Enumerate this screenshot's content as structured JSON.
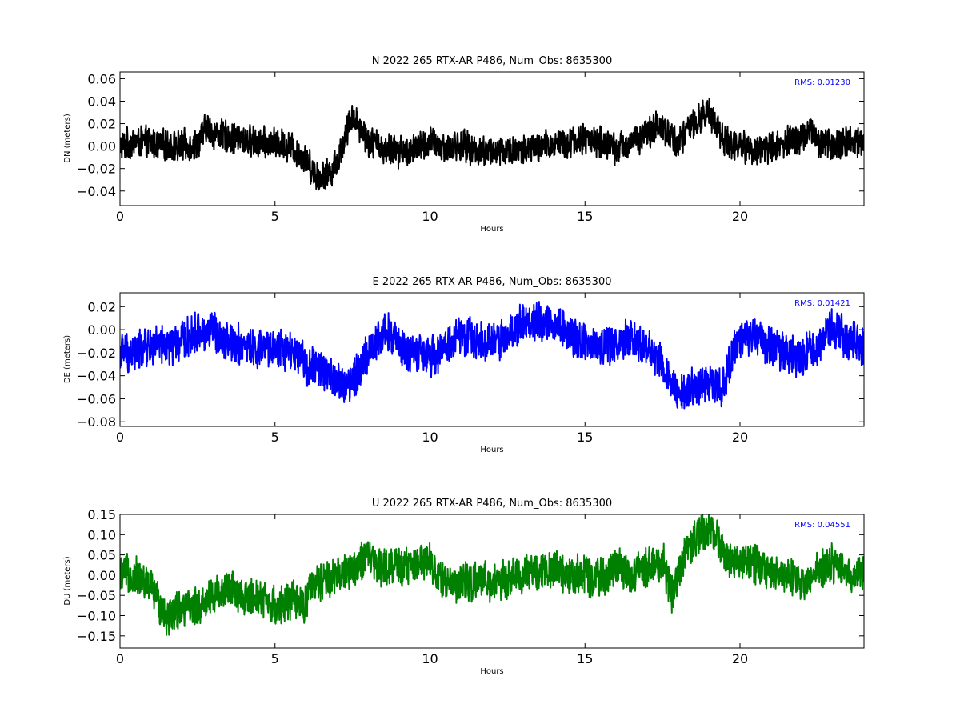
{
  "chart_data": [
    {
      "type": "line",
      "title": "N 2022 265 RTX-AR  P486, Num_Obs: 8635300",
      "xlabel": "Hours",
      "ylabel": "DN (meters)",
      "xlim": [
        0,
        24
      ],
      "ylim": [
        -0.053,
        0.066
      ],
      "xticks": [
        0,
        5,
        10,
        15,
        20
      ],
      "xtick_labels": [
        "0",
        "5",
        "10",
        "15",
        "20"
      ],
      "yticks": [
        -0.04,
        -0.02,
        0.0,
        0.02,
        0.04,
        0.06
      ],
      "ytick_labels": [
        "−0.04",
        "−0.02",
        "0.00",
        "0.02",
        "0.04",
        "0.06"
      ],
      "rms_label": "RMS:  0.01230",
      "color": "#000000",
      "rms_color": "#0000ff",
      "series": [
        {
          "x": [
            0,
            0.5,
            1,
            1.5,
            2,
            2.5,
            2.8,
            3,
            3.5,
            4,
            4.5,
            5,
            5.5,
            6,
            6.3,
            6.6,
            7,
            7.3,
            7.5,
            7.8,
            8,
            8.5,
            9,
            9.5,
            10,
            10.5,
            11,
            11.5,
            12,
            12.5,
            13,
            13.5,
            14,
            14.5,
            15,
            15.5,
            16,
            16.5,
            17,
            17.3,
            17.6,
            18,
            18.5,
            19,
            19.3,
            19.5,
            20,
            20.5,
            21,
            21.5,
            22,
            22.3,
            22.5,
            23,
            23.5,
            24
          ],
          "y": [
            0.0,
            0.004,
            0.003,
            0.0,
            0.0,
            0.002,
            0.017,
            0.012,
            0.008,
            0.005,
            0.003,
            0.002,
            0.0,
            -0.012,
            -0.025,
            -0.028,
            -0.015,
            0.012,
            0.028,
            0.015,
            0.005,
            -0.002,
            -0.005,
            -0.003,
            0.003,
            -0.002,
            0.001,
            -0.004,
            -0.005,
            -0.004,
            -0.004,
            -0.002,
            0.002,
            0.004,
            0.006,
            0.004,
            -0.003,
            0.004,
            0.01,
            0.02,
            0.012,
            0.004,
            0.02,
            0.03,
            0.018,
            0.005,
            0.0,
            -0.003,
            -0.002,
            0.003,
            0.008,
            0.015,
            0.004,
            0.0,
            0.005,
            0.005
          ],
          "noise": 0.016
        }
      ]
    },
    {
      "type": "line",
      "title": "E 2022 265 RTX-AR  P486, Num_Obs: 8635300",
      "xlabel": "Hours",
      "ylabel": "DE (meters)",
      "xlim": [
        0,
        24
      ],
      "ylim": [
        -0.084,
        0.032
      ],
      "xticks": [
        0,
        5,
        10,
        15,
        20
      ],
      "xtick_labels": [
        "0",
        "5",
        "10",
        "15",
        "20"
      ],
      "yticks": [
        -0.08,
        -0.06,
        -0.04,
        -0.02,
        0.0,
        0.02
      ],
      "ytick_labels": [
        "−0.08",
        "−0.06",
        "−0.04",
        "−0.02",
        "0.00",
        "0.02"
      ],
      "rms_label": "RMS:  0.01421",
      "color": "#0000ff",
      "rms_color": "#0000ff",
      "series": [
        {
          "x": [
            0,
            0.5,
            1,
            1.5,
            2,
            2.5,
            3,
            3.3,
            3.6,
            4,
            4.5,
            5,
            5.5,
            6,
            6.5,
            7,
            7.3,
            7.6,
            8,
            8.3,
            8.6,
            9,
            9.5,
            10,
            10.5,
            11,
            11.5,
            12,
            12.5,
            13,
            13.5,
            14,
            14.5,
            15,
            15.5,
            16,
            16.5,
            17,
            17.5,
            18,
            18.5,
            19,
            19.5,
            19.7,
            20,
            20.5,
            21,
            21.5,
            22,
            22.5,
            22.8,
            23,
            23.5,
            24
          ],
          "y": [
            -0.02,
            -0.02,
            -0.015,
            -0.015,
            -0.01,
            -0.003,
            0.0,
            -0.008,
            -0.01,
            -0.015,
            -0.018,
            -0.015,
            -0.02,
            -0.03,
            -0.035,
            -0.045,
            -0.05,
            -0.04,
            -0.02,
            -0.01,
            0.0,
            -0.015,
            -0.02,
            -0.025,
            -0.015,
            -0.005,
            -0.008,
            -0.012,
            -0.005,
            0.005,
            0.008,
            0.005,
            -0.002,
            -0.012,
            -0.015,
            -0.012,
            -0.005,
            -0.015,
            -0.03,
            -0.055,
            -0.05,
            -0.048,
            -0.05,
            -0.025,
            -0.01,
            -0.005,
            -0.015,
            -0.02,
            -0.025,
            -0.015,
            -0.005,
            0.005,
            -0.01,
            -0.015
          ],
          "noise": 0.02
        }
      ]
    },
    {
      "type": "line",
      "title": "U 2022 265 RTX-AR  P486, Num_Obs: 8635300",
      "xlabel": "Hours",
      "ylabel": "DU (meters)",
      "xlim": [
        0,
        24
      ],
      "ylim": [
        -0.18,
        0.15
      ],
      "xticks": [
        0,
        5,
        10,
        15,
        20
      ],
      "xtick_labels": [
        "0",
        "5",
        "10",
        "15",
        "20"
      ],
      "yticks": [
        -0.15,
        -0.1,
        -0.05,
        0.0,
        0.05,
        0.1,
        0.15
      ],
      "ytick_labels": [
        "−0.15",
        "−0.10",
        "−0.05",
        "0.00",
        "0.05",
        "0.10",
        "0.15"
      ],
      "rms_label": "RMS:  0.04551",
      "color": "#008000",
      "rms_color": "#0000ff",
      "series": [
        {
          "x": [
            0,
            0.5,
            1,
            1.5,
            2,
            2.5,
            3,
            3.5,
            4,
            4.5,
            5,
            5.5,
            5.9,
            6.2,
            6.5,
            7,
            7.5,
            8,
            8.5,
            9,
            9.5,
            9.9,
            10.3,
            10.8,
            11.5,
            12,
            12.5,
            13,
            13.5,
            14,
            14.5,
            15,
            15.5,
            16,
            16.5,
            17,
            17.5,
            17.8,
            18.2,
            18.6,
            19,
            19.3,
            19.6,
            20,
            20.5,
            21,
            21.5,
            22,
            22.5,
            23,
            23.5,
            24
          ],
          "y": [
            0.0,
            0.0,
            -0.03,
            -0.1,
            -0.08,
            -0.08,
            -0.05,
            -0.03,
            -0.06,
            -0.05,
            -0.08,
            -0.06,
            -0.08,
            -0.03,
            -0.02,
            0.0,
            0.02,
            0.04,
            0.02,
            0.02,
            0.02,
            0.05,
            -0.01,
            -0.02,
            -0.015,
            -0.02,
            -0.01,
            0.0,
            0.01,
            0.02,
            0.0,
            0.0,
            -0.01,
            0.02,
            0.0,
            0.02,
            0.04,
            -0.05,
            0.05,
            0.1,
            0.11,
            0.09,
            0.04,
            0.03,
            0.03,
            0.0,
            0.01,
            -0.02,
            0.01,
            0.03,
            0.0,
            0.0
          ],
          "noise": 0.055
        }
      ]
    }
  ]
}
